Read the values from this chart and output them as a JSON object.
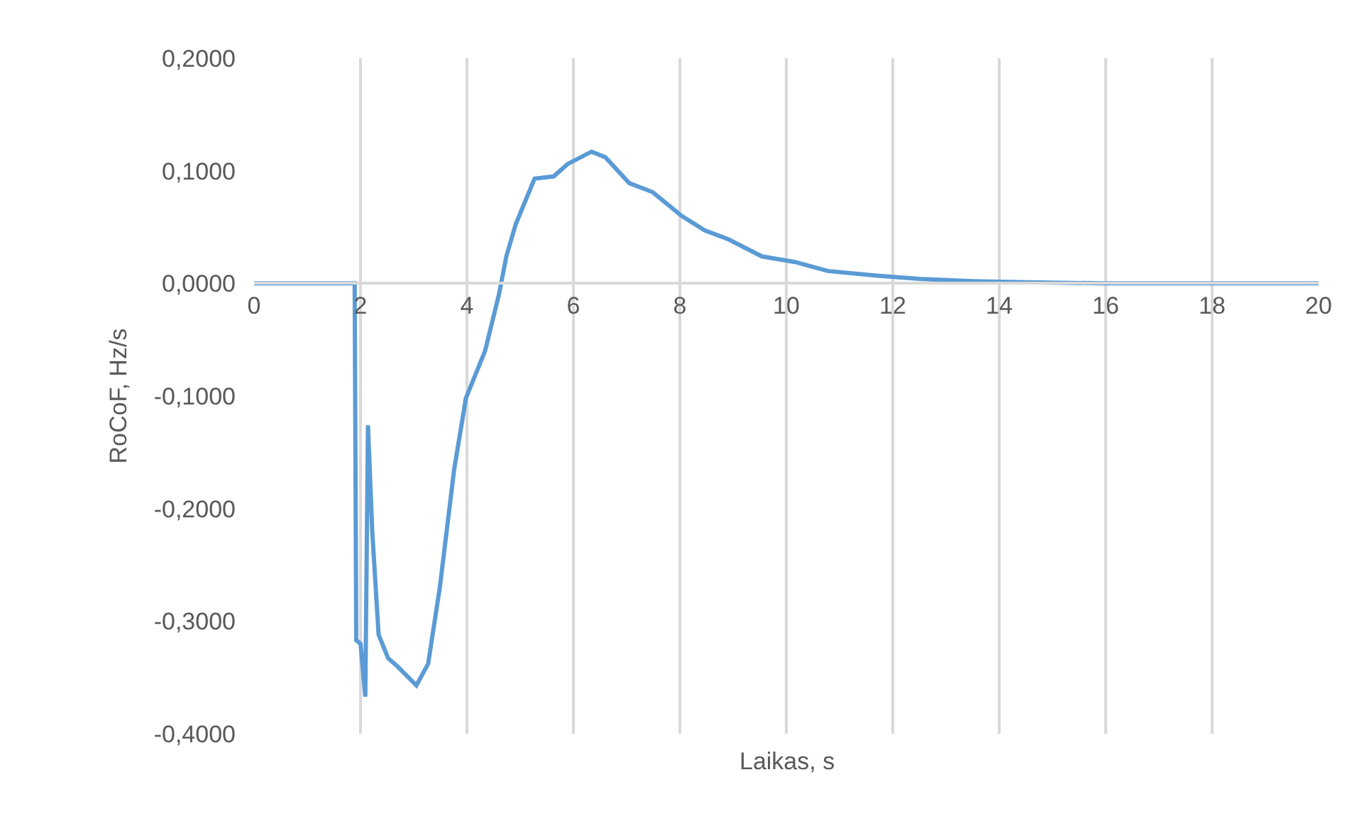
{
  "chart_data": {
    "type": "line",
    "xlabel": "Laikas, s",
    "ylabel": "RoCoF, Hz/s",
    "xlim": [
      0,
      20
    ],
    "xticks": [
      0,
      2,
      4,
      6,
      8,
      10,
      12,
      14,
      16,
      18,
      20
    ],
    "ylim": [
      -0.4,
      0.2
    ],
    "yticks": [
      {
        "value": 0.2,
        "label": "0,2000"
      },
      {
        "value": 0.1,
        "label": "0,1000"
      },
      {
        "value": 0,
        "label": "0,0000"
      },
      {
        "value": -0.1,
        "label": "-0,1000"
      },
      {
        "value": -0.2,
        "label": "-0,2000"
      },
      {
        "value": -0.3,
        "label": "-0,3000"
      },
      {
        "value": -0.4,
        "label": "-0,4000"
      }
    ],
    "grid": "x",
    "marker": "none",
    "line_style": "solid",
    "x": [
      0,
      1,
      1.89,
      1.92,
      2.0,
      2.09,
      2.14,
      2.22,
      2.34,
      2.52,
      2.69,
      3.05,
      3.27,
      3.49,
      3.76,
      3.98,
      4.34,
      4.6,
      4.74,
      4.92,
      5.27,
      5.63,
      5.89,
      6.34,
      6.6,
      7.05,
      7.49,
      8.03,
      8.47,
      8.92,
      9.54,
      10.16,
      10.78,
      11.67,
      12.5,
      13.5,
      14.5,
      16,
      18,
      20
    ],
    "series": [
      {
        "color": "#5b9bd5",
        "values": [
          0,
          0,
          0,
          -0.317,
          -0.32,
          -0.367,
          -0.126,
          -0.22,
          -0.312,
          -0.333,
          -0.34,
          -0.357,
          -0.338,
          -0.27,
          -0.165,
          -0.102,
          -0.06,
          -0.01,
          0.024,
          0.053,
          0.093,
          0.095,
          0.106,
          0.117,
          0.112,
          0.089,
          0.081,
          0.06,
          0.047,
          0.039,
          0.024,
          0.019,
          0.011,
          0.007,
          0.004,
          0.002,
          0.001,
          0,
          0,
          0
        ]
      }
    ]
  }
}
